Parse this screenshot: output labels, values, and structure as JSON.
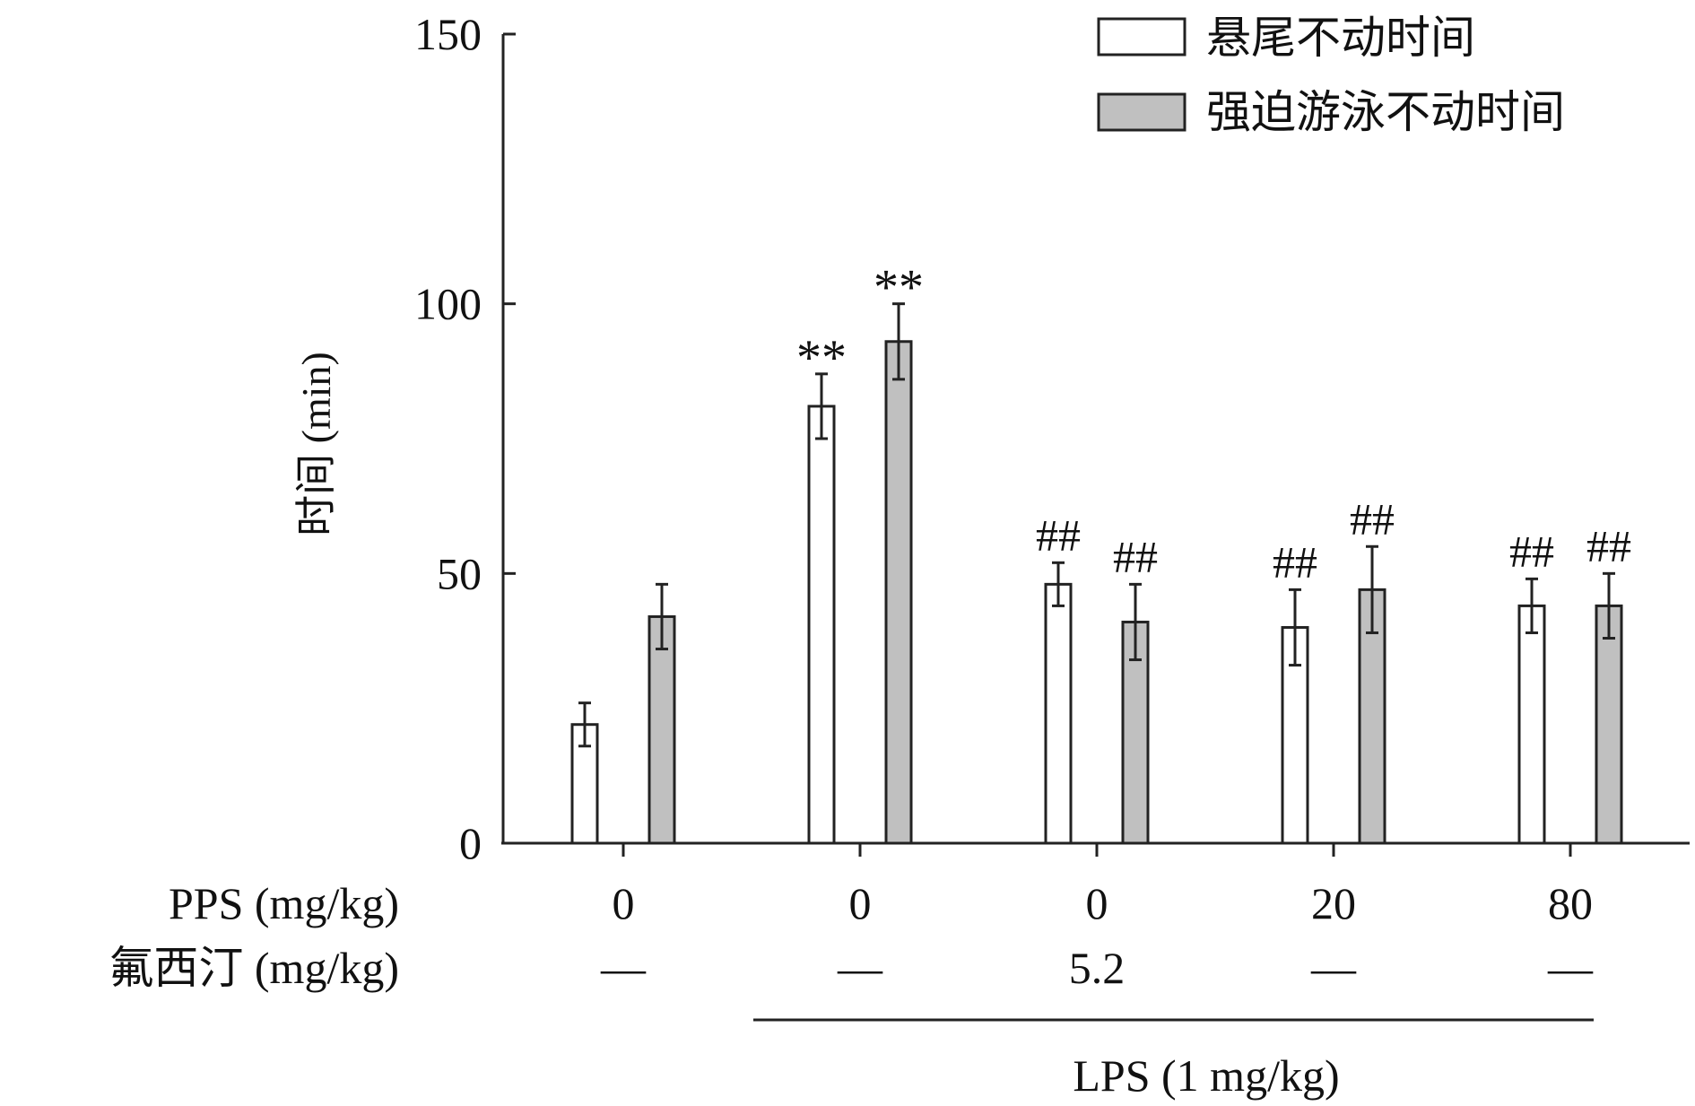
{
  "chart_data": {
    "type": "bar",
    "ylabel": "时间 (min)",
    "ylim": [
      0,
      150
    ],
    "yticks": [
      0,
      50,
      100,
      150
    ],
    "grid": false,
    "legend_position": "top-right",
    "categories": [
      "0",
      "0",
      "0",
      "20",
      "80"
    ],
    "row_labels": {
      "pps": "PPS (mg/kg)",
      "fluoxetine": "氟西汀 (mg/kg)"
    },
    "fluoxetine_values": [
      "—",
      "—",
      "5.2",
      "—",
      "—"
    ],
    "lps_label": "LPS (1 mg/kg)",
    "series": [
      {
        "name": "悬尾不动时间",
        "color": "#ffffff",
        "values": [
          22,
          81,
          48,
          40,
          44
        ],
        "errors": [
          4,
          6,
          4,
          7,
          5
        ],
        "annotations": [
          "",
          "**",
          "##",
          "##",
          "##"
        ]
      },
      {
        "name": "强迫游泳不动时间",
        "color": "#c0c0c0",
        "values": [
          42,
          93,
          41,
          47,
          44
        ],
        "errors": [
          6,
          7,
          7,
          8,
          6
        ],
        "annotations": [
          "",
          "**",
          "##",
          "##",
          "##"
        ]
      }
    ]
  }
}
